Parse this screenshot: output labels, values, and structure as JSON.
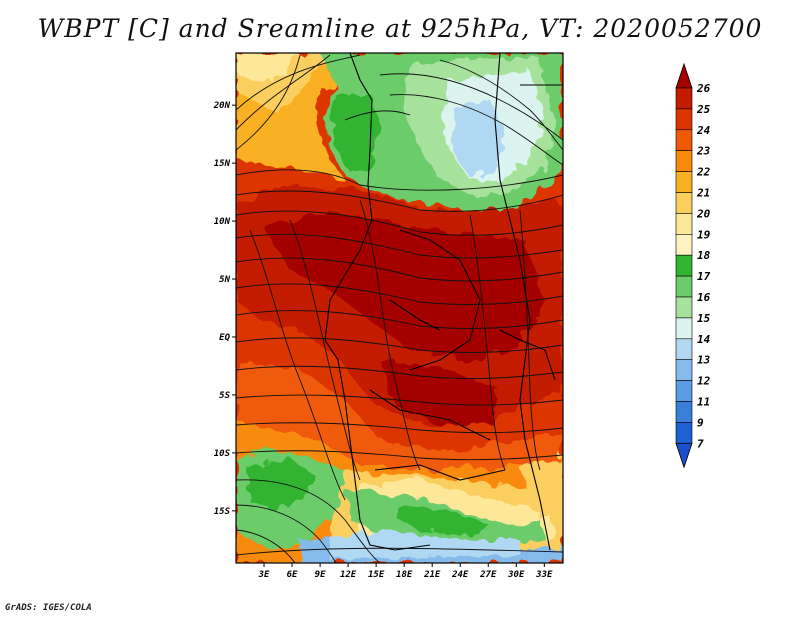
{
  "title": "WBPT [C] and Sreamline at 925hPa, VT: 2020052700",
  "credit": "GrADS: IGES/COLA",
  "map": {
    "lat_labels": [
      "20N",
      "15N",
      "10N",
      "5N",
      "EQ",
      "5S",
      "10S",
      "15S"
    ],
    "lon_labels": [
      "3E",
      "6E",
      "9E",
      "12E",
      "15E",
      "18E",
      "21E",
      "24E",
      "27E",
      "30E",
      "33E"
    ],
    "lat_range": [
      -19.5,
      24.5
    ],
    "lon_range": [
      0,
      35
    ]
  },
  "colorbar": {
    "levels": [
      "26",
      "25",
      "24",
      "23",
      "22",
      "21",
      "20",
      "19",
      "18",
      "17",
      "16",
      "15",
      "14",
      "13",
      "12",
      "11",
      "9",
      "7"
    ],
    "colors": [
      "#a50000",
      "#c31a00",
      "#dc3500",
      "#ef5a08",
      "#f88b0d",
      "#f9b020",
      "#fbcf5e",
      "#fde89a",
      "#fdf3c0",
      "#32b432",
      "#6ccc6a",
      "#a6e29c",
      "#dcf4f0",
      "#b0d8f2",
      "#84bbec",
      "#5a9ce4",
      "#3a7edc",
      "#2060d6"
    ]
  }
}
